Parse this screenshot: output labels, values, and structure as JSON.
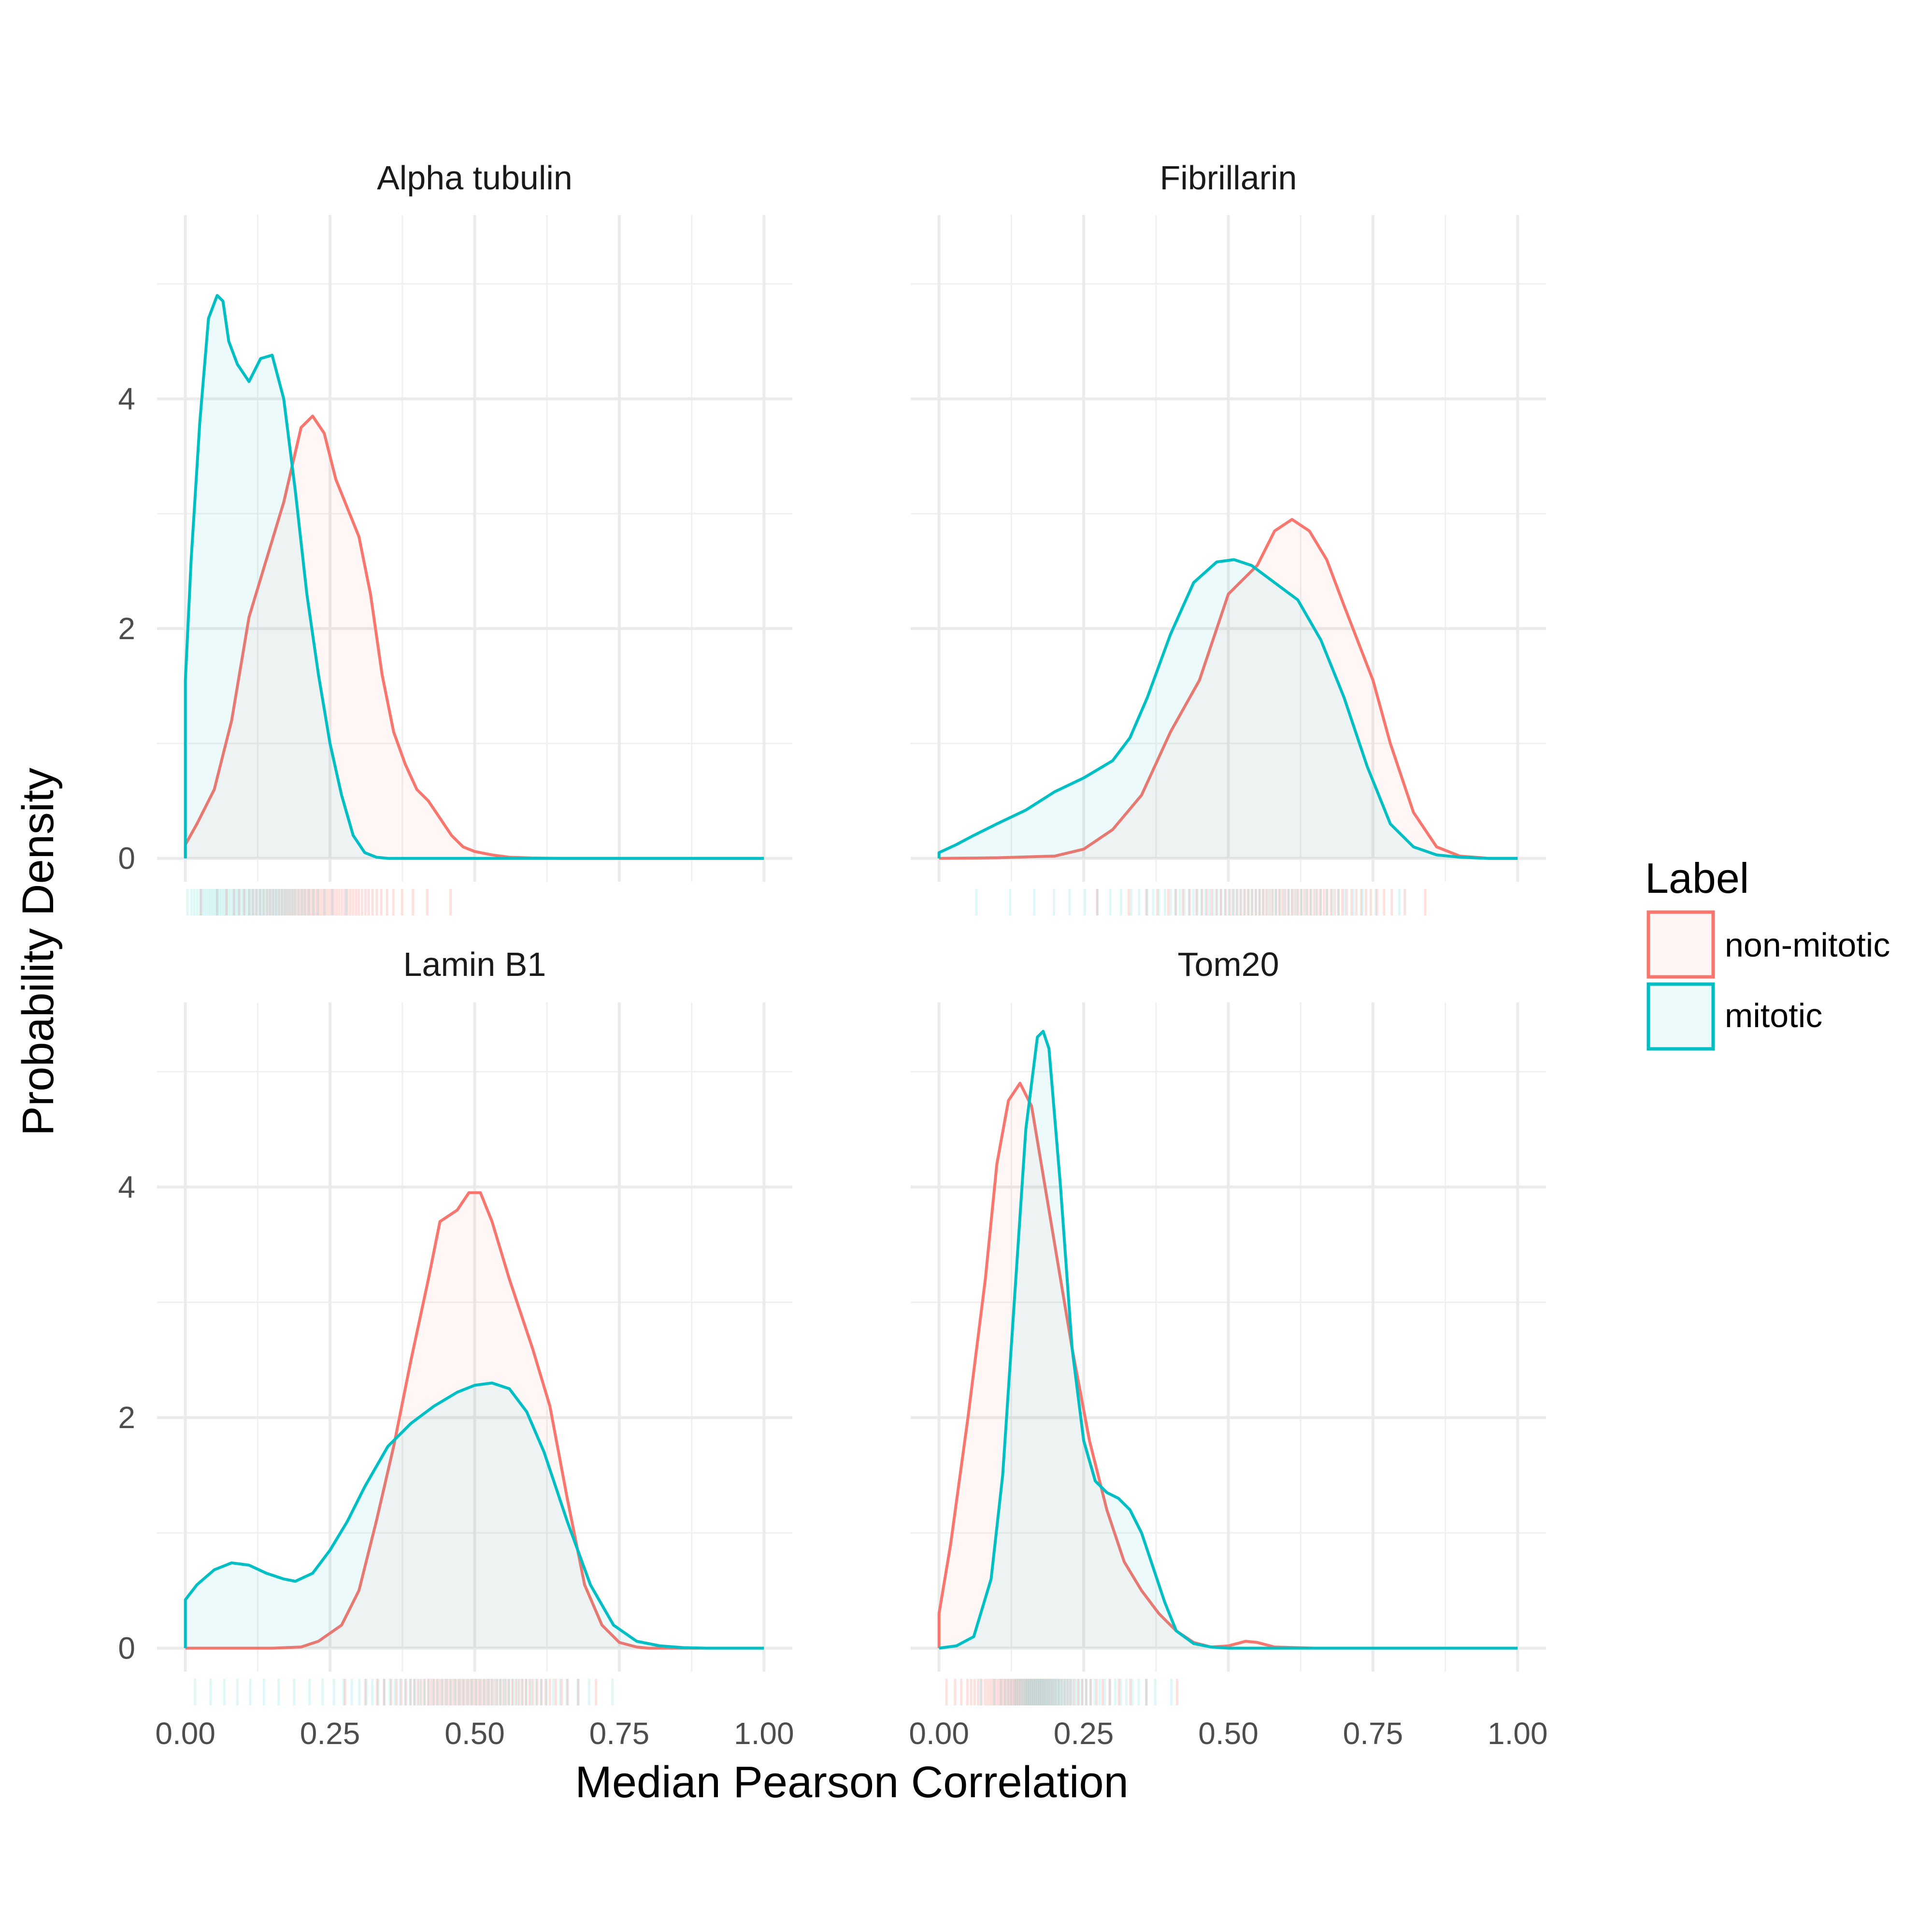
{
  "chart_data": {
    "type": "area",
    "subtype": "faceted density plot with rug marks",
    "xlabel": "Median Pearson Correlation",
    "ylabel": "Probability Density",
    "xlim": [
      0,
      1
    ],
    "ylim": [
      0,
      5.6
    ],
    "x_ticks": [
      "0.00",
      "0.25",
      "0.50",
      "0.75",
      "1.00"
    ],
    "x_tick_values": [
      0,
      0.25,
      0.5,
      0.75,
      1.0
    ],
    "y_ticks": [
      "0",
      "2",
      "4"
    ],
    "y_tick_values": [
      0,
      2,
      4
    ],
    "grid": true,
    "legend": {
      "title": "Label",
      "position": "right",
      "entries": [
        "non-mitotic",
        "mitotic"
      ]
    },
    "colors": {
      "non-mitotic": "#F8766D",
      "mitotic": "#00BFC4"
    },
    "panels": [
      {
        "title": "Alpha tubulin",
        "series": [
          {
            "name": "non-mitotic",
            "x": [
              0,
              0.02,
              0.05,
              0.08,
              0.11,
              0.14,
              0.17,
              0.2,
              0.22,
              0.24,
              0.26,
              0.28,
              0.3,
              0.32,
              0.34,
              0.36,
              0.38,
              0.4,
              0.42,
              0.44,
              0.46,
              0.48,
              0.5,
              0.53,
              0.56,
              0.6,
              0.65,
              0.75,
              1.0
            ],
            "y": [
              0.12,
              0.3,
              0.6,
              1.2,
              2.1,
              2.6,
              3.1,
              3.75,
              3.85,
              3.7,
              3.3,
              3.05,
              2.8,
              2.3,
              1.6,
              1.1,
              0.82,
              0.6,
              0.5,
              0.35,
              0.2,
              0.1,
              0.06,
              0.03,
              0.01,
              0.003,
              0,
              0,
              0
            ]
          },
          {
            "name": "mitotic",
            "x": [
              0,
              0.01,
              0.025,
              0.04,
              0.055,
              0.065,
              0.075,
              0.09,
              0.11,
              0.13,
              0.15,
              0.17,
              0.19,
              0.21,
              0.23,
              0.25,
              0.27,
              0.29,
              0.31,
              0.33,
              0.35,
              0.4,
              0.5,
              1.0
            ],
            "y": [
              1.55,
              2.6,
              3.8,
              4.7,
              4.9,
              4.85,
              4.5,
              4.3,
              4.15,
              4.35,
              4.38,
              4.0,
              3.2,
              2.3,
              1.6,
              1.0,
              0.55,
              0.2,
              0.05,
              0.01,
              0,
              0,
              0,
              0
            ]
          }
        ]
      },
      {
        "title": "Fibrillarin",
        "series": [
          {
            "name": "non-mitotic",
            "x": [
              0,
              0.1,
              0.2,
              0.25,
              0.3,
              0.35,
              0.4,
              0.45,
              0.5,
              0.55,
              0.58,
              0.61,
              0.64,
              0.67,
              0.7,
              0.75,
              0.78,
              0.82,
              0.86,
              0.9,
              0.95,
              1.0
            ],
            "y": [
              0,
              0.005,
              0.02,
              0.08,
              0.25,
              0.55,
              1.1,
              1.55,
              2.3,
              2.55,
              2.85,
              2.95,
              2.85,
              2.6,
              2.2,
              1.55,
              1.0,
              0.4,
              0.1,
              0.02,
              0,
              0
            ]
          },
          {
            "name": "mitotic",
            "x": [
              0,
              0.03,
              0.06,
              0.1,
              0.15,
              0.2,
              0.25,
              0.3,
              0.33,
              0.36,
              0.4,
              0.44,
              0.48,
              0.51,
              0.54,
              0.58,
              0.62,
              0.66,
              0.7,
              0.74,
              0.78,
              0.82,
              0.86,
              0.9,
              0.95,
              1.0
            ],
            "y": [
              0.05,
              0.12,
              0.2,
              0.3,
              0.42,
              0.58,
              0.7,
              0.85,
              1.05,
              1.4,
              1.95,
              2.4,
              2.58,
              2.6,
              2.55,
              2.4,
              2.25,
              1.9,
              1.4,
              0.8,
              0.3,
              0.1,
              0.03,
              0.01,
              0,
              0
            ]
          }
        ]
      },
      {
        "title": "Lamin B1",
        "series": [
          {
            "name": "non-mitotic",
            "x": [
              0,
              0.15,
              0.2,
              0.23,
              0.27,
              0.3,
              0.33,
              0.36,
              0.39,
              0.42,
              0.44,
              0.47,
              0.49,
              0.51,
              0.53,
              0.56,
              0.6,
              0.63,
              0.66,
              0.69,
              0.72,
              0.75,
              0.78,
              0.8,
              1.0
            ],
            "y": [
              0,
              0,
              0.01,
              0.06,
              0.2,
              0.5,
              1.1,
              1.75,
              2.5,
              3.2,
              3.7,
              3.8,
              3.95,
              3.95,
              3.7,
              3.2,
              2.6,
              2.1,
              1.3,
              0.55,
              0.2,
              0.05,
              0.01,
              0,
              0
            ]
          },
          {
            "name": "mitotic",
            "x": [
              0,
              0.02,
              0.05,
              0.08,
              0.11,
              0.14,
              0.17,
              0.19,
              0.22,
              0.25,
              0.28,
              0.31,
              0.35,
              0.39,
              0.43,
              0.47,
              0.5,
              0.53,
              0.56,
              0.59,
              0.62,
              0.66,
              0.7,
              0.74,
              0.78,
              0.82,
              0.86,
              0.9,
              1.0
            ],
            "y": [
              0.42,
              0.55,
              0.68,
              0.74,
              0.72,
              0.65,
              0.6,
              0.58,
              0.65,
              0.85,
              1.1,
              1.4,
              1.75,
              1.95,
              2.1,
              2.22,
              2.28,
              2.3,
              2.25,
              2.05,
              1.7,
              1.1,
              0.55,
              0.2,
              0.06,
              0.02,
              0.005,
              0,
              0
            ]
          }
        ]
      },
      {
        "title": "Tom20",
        "series": [
          {
            "name": "non-mitotic",
            "x": [
              0,
              0.02,
              0.05,
              0.08,
              0.1,
              0.12,
              0.14,
              0.16,
              0.18,
              0.2,
              0.23,
              0.26,
              0.29,
              0.32,
              0.35,
              0.38,
              0.41,
              0.44,
              0.47,
              0.5,
              0.53,
              0.55,
              0.58,
              0.65,
              1.0
            ],
            "y": [
              0.3,
              0.9,
              2.0,
              3.2,
              4.2,
              4.75,
              4.9,
              4.7,
              4.1,
              3.5,
              2.6,
              1.8,
              1.2,
              0.75,
              0.5,
              0.3,
              0.15,
              0.05,
              0.01,
              0.02,
              0.06,
              0.05,
              0.01,
              0,
              0
            ]
          },
          {
            "name": "mitotic",
            "x": [
              0,
              0.03,
              0.06,
              0.09,
              0.11,
              0.13,
              0.15,
              0.17,
              0.18,
              0.19,
              0.21,
              0.23,
              0.25,
              0.27,
              0.29,
              0.31,
              0.33,
              0.35,
              0.37,
              0.39,
              0.41,
              0.44,
              0.47,
              0.5,
              0.55,
              1.0
            ],
            "y": [
              0,
              0.02,
              0.1,
              0.6,
              1.5,
              3.0,
              4.5,
              5.3,
              5.35,
              5.2,
              4.0,
              2.6,
              1.8,
              1.45,
              1.35,
              1.3,
              1.2,
              1.0,
              0.7,
              0.4,
              0.15,
              0.04,
              0.01,
              0,
              0,
              0
            ]
          }
        ]
      }
    ]
  }
}
